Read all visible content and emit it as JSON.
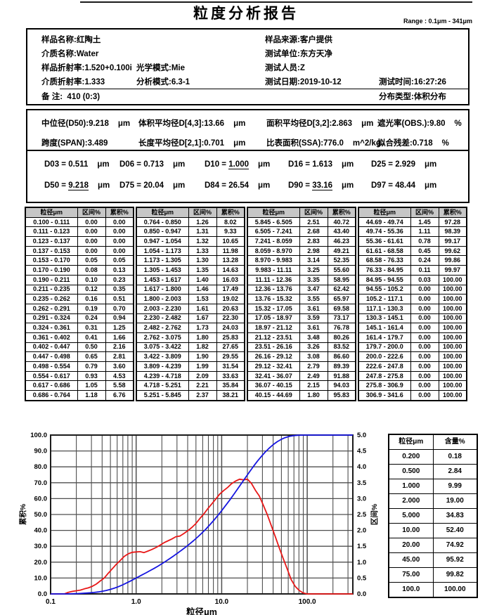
{
  "document": {
    "title": "粒度分析报告",
    "range_label": "Range : 0.1μm - 341μm"
  },
  "info": {
    "sample_name_label": "样品名称:",
    "sample_name": "红陶土",
    "sample_source_label": "样品来源:",
    "sample_source": "客户提供",
    "medium_name_label": "介质名称:",
    "medium_name": "Water",
    "test_unit_label": "测试单位:",
    "test_unit": "东方天净",
    "sample_ri_label": "样品折射率:",
    "sample_ri": "1.520+0.100i",
    "optical_mode_label": "光学模式:",
    "optical_mode": "Mie",
    "tester_label": "测试人员:",
    "tester": "Z",
    "medium_ri_label": "介质折射率:",
    "medium_ri": "1.333",
    "analysis_mode_label": "分析模式:",
    "analysis_mode": "6.3-1",
    "test_date_label": "测试日期:",
    "test_date": "2019-10-12",
    "test_time_label": "测试时间:",
    "test_time": "16:27:26",
    "remark_label": "备 注:",
    "remark": "410  (0:3)",
    "dist_type_label": "分布类型:",
    "dist_type": "体积分布"
  },
  "stats": {
    "items": [
      {
        "label": "中位径(D50):",
        "value": "9.218",
        "unit": "μm"
      },
      {
        "label": "体积平均径D[4,3]:",
        "value": "13.66",
        "unit": "μm"
      },
      {
        "label": "面积平均径D[3,2]:",
        "value": "2.863",
        "unit": "μm"
      },
      {
        "label": "遮光率(OBS.):",
        "value": "9.80",
        "unit": "%"
      },
      {
        "label": "跨度(SPAN):",
        "value": "3.489",
        "unit": ""
      },
      {
        "label": "长度平均径D[2,1]:",
        "value": "0.701",
        "unit": "μm"
      },
      {
        "label": "比表面积(SSA):",
        "value": "776.0",
        "unit": "m^2/kg"
      },
      {
        "label": "拟合残差:",
        "value": "0.718",
        "unit": "%"
      }
    ]
  },
  "dvalues": {
    "items": [
      {
        "label": "D03",
        "value": "0.511",
        "unit": "μm"
      },
      {
        "label": "D06",
        "value": "0.713",
        "unit": "μm"
      },
      {
        "label": "D10",
        "value": "1.000",
        "unit": "μm"
      },
      {
        "label": "D16",
        "value": "1.613",
        "unit": "μm"
      },
      {
        "label": "D25",
        "value": "2.929",
        "unit": "μm"
      },
      {
        "label": "D50",
        "value": "9.218",
        "unit": "μm"
      },
      {
        "label": "D75",
        "value": "20.04",
        "unit": "μm"
      },
      {
        "label": "D84",
        "value": "26.54",
        "unit": "μm"
      },
      {
        "label": "D90",
        "value": "33.16",
        "unit": "μm"
      },
      {
        "label": "D97",
        "value": "48.44",
        "unit": "μm"
      }
    ]
  },
  "distribution_table": {
    "headers": [
      "粒径μm",
      "区间%",
      "累积%"
    ],
    "groups": 4,
    "rows_per_group": 19
  },
  "content_table": {
    "headers": [
      "粒径μm",
      "含量%"
    ],
    "rows": [
      [
        "0.200",
        "0.18"
      ],
      [
        "0.500",
        "2.84"
      ],
      [
        "1.000",
        "9.99"
      ],
      [
        "2.000",
        "19.00"
      ],
      [
        "5.000",
        "34.83"
      ],
      [
        "10.00",
        "52.40"
      ],
      [
        "20.00",
        "74.92"
      ],
      [
        "45.00",
        "95.92"
      ],
      [
        "75.00",
        "99.82"
      ],
      [
        "100.0",
        "100.00"
      ]
    ]
  },
  "chart_data": {
    "type": "line",
    "x_scale": "log",
    "xlabel": "粒径μm",
    "ylabel_left": "累积%",
    "ylabel_right": "区间%",
    "xlim": [
      0.1,
      341.6
    ],
    "ylim_left": [
      0,
      100
    ],
    "ylim_right": [
      0,
      5
    ],
    "xticks": [
      0.1,
      1.0,
      10.0,
      100.0
    ],
    "xtick_labels": [
      "0.1",
      "1.0",
      "10.0",
      "100.0"
    ],
    "ytick_step_left": 10,
    "ytick_step_right": 0.5,
    "grid": true,
    "grid_color": "#4f4f4f",
    "bin_edges": [
      0.1,
      0.111,
      0.123,
      0.137,
      0.153,
      0.17,
      0.19,
      0.211,
      0.235,
      0.262,
      0.291,
      0.324,
      0.361,
      0.402,
      0.447,
      0.498,
      0.554,
      0.617,
      0.686,
      0.764,
      0.85,
      0.947,
      1.054,
      1.173,
      1.305,
      1.453,
      1.617,
      1.8,
      2.003,
      2.23,
      2.482,
      2.762,
      3.075,
      3.422,
      3.809,
      4.239,
      4.718,
      5.251,
      5.845,
      6.505,
      7.241,
      8.059,
      8.97,
      9.983,
      11.11,
      12.36,
      13.76,
      15.32,
      17.05,
      18.97,
      21.12,
      23.51,
      26.16,
      29.12,
      32.41,
      36.07,
      40.15,
      44.69,
      49.74,
      55.36,
      61.61,
      68.58,
      76.33,
      84.95,
      94.55,
      105.2,
      117.1,
      130.3,
      145.1,
      161.4,
      179.7,
      200.0,
      222.6,
      247.8,
      275.8,
      306.9,
      341.6
    ],
    "series": [
      {
        "name": "累积%",
        "axis": "left",
        "color": "#1515e0",
        "values": [
          0.0,
          0.0,
          0.0,
          0.0,
          0.05,
          0.13,
          0.23,
          0.35,
          0.51,
          0.7,
          0.94,
          1.25,
          1.66,
          2.16,
          2.81,
          3.6,
          4.53,
          5.58,
          6.76,
          8.02,
          9.33,
          10.65,
          11.98,
          13.28,
          14.63,
          16.03,
          17.49,
          19.02,
          20.63,
          22.3,
          24.03,
          25.83,
          27.65,
          29.55,
          31.54,
          33.63,
          35.84,
          38.21,
          40.72,
          43.4,
          46.23,
          49.21,
          52.35,
          55.6,
          58.95,
          62.42,
          65.97,
          69.58,
          73.17,
          76.78,
          80.26,
          83.52,
          86.6,
          89.39,
          91.88,
          94.03,
          95.83,
          97.28,
          98.39,
          99.17,
          99.62,
          99.86,
          99.97,
          100.0,
          100.0,
          100.0,
          100.0,
          100.0,
          100.0,
          100.0,
          100.0,
          100.0,
          100.0,
          100.0,
          100.0,
          100.0
        ]
      },
      {
        "name": "区间%",
        "axis": "right",
        "color": "#e81717",
        "values": [
          0.0,
          0.0,
          0.0,
          0.0,
          0.05,
          0.08,
          0.1,
          0.12,
          0.16,
          0.19,
          0.24,
          0.31,
          0.41,
          0.5,
          0.65,
          0.79,
          0.93,
          1.05,
          1.18,
          1.26,
          1.31,
          1.32,
          1.33,
          1.3,
          1.35,
          1.4,
          1.46,
          1.53,
          1.61,
          1.67,
          1.73,
          1.8,
          1.82,
          1.9,
          1.99,
          2.09,
          2.21,
          2.37,
          2.51,
          2.68,
          2.83,
          2.98,
          3.14,
          3.25,
          3.35,
          3.47,
          3.55,
          3.61,
          3.59,
          3.61,
          3.48,
          3.26,
          3.08,
          2.79,
          2.49,
          2.15,
          1.8,
          1.45,
          1.11,
          0.78,
          0.45,
          0.24,
          0.11,
          0.03,
          0.0,
          0.0,
          0.0,
          0.0,
          0.0,
          0.0,
          0.0,
          0.0,
          0.0,
          0.0,
          0.0,
          0.0
        ]
      }
    ]
  }
}
